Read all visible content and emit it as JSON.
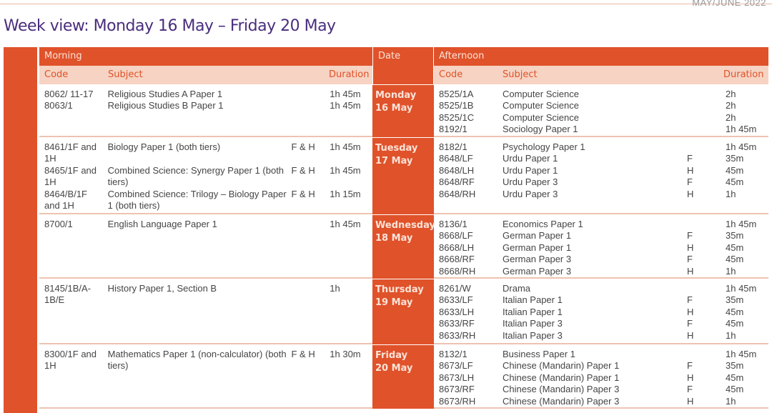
{
  "header_label": "MAY/JUNE 2022",
  "title": "Week view: Monday 16 May – Friday 20 May",
  "columns": {
    "morning": "Morning",
    "date": "Date",
    "afternoon": "Afternoon",
    "code": "Code",
    "subject": "Subject",
    "duration": "Duration"
  },
  "days": [
    {
      "day": "Monday",
      "date": "16 May",
      "morning": [
        {
          "code": "8062/ 11-17",
          "subject": "Religious Studies A Paper 1",
          "tier": "",
          "duration": "1h 45m"
        },
        {
          "code": "8063/1",
          "subject": "Religious Studies B Paper 1",
          "tier": "",
          "duration": "1h 45m"
        }
      ],
      "afternoon": [
        {
          "code": "8525/1A",
          "subject": "Computer Science",
          "tier": "",
          "duration": "2h"
        },
        {
          "code": "8525/1B",
          "subject": "Computer Science",
          "tier": "",
          "duration": "2h"
        },
        {
          "code": "8525/1C",
          "subject": "Computer Science",
          "tier": "",
          "duration": "2h"
        },
        {
          "code": "8192/1",
          "subject": "Sociology Paper 1",
          "tier": "",
          "duration": "1h 45m"
        }
      ]
    },
    {
      "day": "Tuesday",
      "date": "17 May",
      "morning": [
        {
          "code": "8461/1F and 1H",
          "subject": "Biology Paper 1 (both tiers)",
          "tier": "F & H",
          "duration": "1h 45m"
        },
        {
          "code": "8465/1F and 1H",
          "subject": "Combined Science: Synergy Paper 1 (both tiers)",
          "tier": "F & H",
          "duration": "1h 45m"
        },
        {
          "code": "8464/B/1F and 1H",
          "subject": "Combined Science: Trilogy – Biology Paper 1 (both tiers)",
          "tier": "F & H",
          "duration": "1h 15m"
        }
      ],
      "afternoon": [
        {
          "code": "8182/1",
          "subject": "Psychology Paper 1",
          "tier": "",
          "duration": "1h 45m"
        },
        {
          "code": "8648/LF",
          "subject": "Urdu Paper 1",
          "tier": "F",
          "duration": "35m"
        },
        {
          "code": "8648/LH",
          "subject": "Urdu Paper 1",
          "tier": "H",
          "duration": "45m"
        },
        {
          "code": "8648/RF",
          "subject": "Urdu Paper 3",
          "tier": "F",
          "duration": "45m"
        },
        {
          "code": "8648/RH",
          "subject": "Urdu Paper 3",
          "tier": "H",
          "duration": "1h"
        }
      ]
    },
    {
      "day": "Wednesday",
      "date": "18 May",
      "morning": [
        {
          "code": "8700/1",
          "subject": "English Language Paper 1",
          "tier": "",
          "duration": "1h 45m"
        }
      ],
      "afternoon": [
        {
          "code": "8136/1",
          "subject": "Economics Paper 1",
          "tier": "",
          "duration": "1h 45m"
        },
        {
          "code": "8668/LF",
          "subject": "German Paper 1",
          "tier": "F",
          "duration": "35m"
        },
        {
          "code": "8668/LH",
          "subject": "German Paper 1",
          "tier": "H",
          "duration": "45m"
        },
        {
          "code": "8668/RF",
          "subject": "German Paper 3",
          "tier": "F",
          "duration": "45m"
        },
        {
          "code": "8668/RH",
          "subject": "German Paper 3",
          "tier": "H",
          "duration": "1h"
        }
      ]
    },
    {
      "day": "Thursday",
      "date": "19 May",
      "morning": [
        {
          "code": "8145/1B/A-1B/E",
          "subject": "History Paper 1, Section B",
          "tier": "",
          "duration": "1h"
        }
      ],
      "afternoon": [
        {
          "code": "8261/W",
          "subject": "Drama",
          "tier": "",
          "duration": "1h 45m"
        },
        {
          "code": "8633/LF",
          "subject": "Italian Paper 1",
          "tier": "F",
          "duration": "35m"
        },
        {
          "code": "8633/LH",
          "subject": "Italian Paper 1",
          "tier": "H",
          "duration": "45m"
        },
        {
          "code": "8633/RF",
          "subject": "Italian Paper 3",
          "tier": "F",
          "duration": "45m"
        },
        {
          "code": "8633/RH",
          "subject": "Italian Paper 3",
          "tier": "H",
          "duration": "1h"
        }
      ]
    },
    {
      "day": "Friday",
      "date": "20 May",
      "morning": [
        {
          "code": "8300/1F and 1H",
          "subject": "Mathematics Paper 1 (non-calculator) (both tiers)",
          "tier": "F & H",
          "duration": "1h 30m"
        }
      ],
      "afternoon": [
        {
          "code": "8132/1",
          "subject": "Business Paper 1",
          "tier": "",
          "duration": "1h 45m"
        },
        {
          "code": "8673/LF",
          "subject": "Chinese (Mandarin) Paper 1",
          "tier": "F",
          "duration": "35m"
        },
        {
          "code": "8673/LH",
          "subject": "Chinese (Mandarin) Paper 1",
          "tier": "H",
          "duration": "45m"
        },
        {
          "code": "8673/RF",
          "subject": "Chinese (Mandarin) Paper 3",
          "tier": "F",
          "duration": "45m"
        },
        {
          "code": "8673/RH",
          "subject": "Chinese (Mandarin) Paper 3",
          "tier": "H",
          "duration": "1h"
        }
      ]
    }
  ],
  "colors": {
    "accent": "#e0522a",
    "subheader": "#f6d3c2",
    "title": "#4a2d7c"
  }
}
